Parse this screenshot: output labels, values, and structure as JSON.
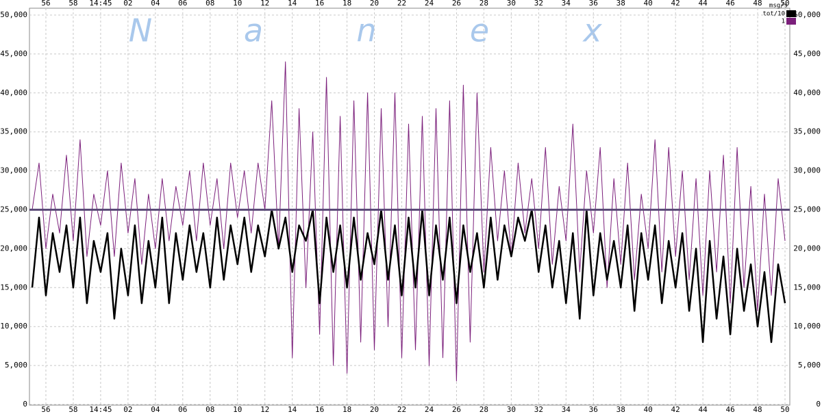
{
  "chart_data": {
    "type": "line",
    "watermark": [
      "N",
      "a",
      "n",
      "e",
      "x"
    ],
    "y_unit": "msg/s",
    "legend": "top-right",
    "grid": true,
    "xlim": [
      54.8,
      110.35
    ],
    "ylim": [
      0,
      50000
    ],
    "xticks": [
      56,
      58,
      {
        "value": 60,
        "label": "14:45"
      },
      {
        "value": 62,
        "label": "02"
      },
      {
        "value": 64,
        "label": "04"
      },
      {
        "value": 66,
        "label": "06"
      },
      {
        "value": 68,
        "label": "08"
      },
      {
        "value": 70,
        "label": "10"
      },
      {
        "value": 72,
        "label": "12"
      },
      {
        "value": 74,
        "label": "14"
      },
      {
        "value": 76,
        "label": "16"
      },
      {
        "value": 78,
        "label": "18"
      },
      {
        "value": 80,
        "label": "20"
      },
      {
        "value": 82,
        "label": "22"
      },
      {
        "value": 84,
        "label": "24"
      },
      {
        "value": 86,
        "label": "26"
      },
      {
        "value": 88,
        "label": "28"
      },
      {
        "value": 90,
        "label": "30"
      },
      {
        "value": 92,
        "label": "32"
      },
      {
        "value": 94,
        "label": "34"
      },
      {
        "value": 96,
        "label": "36"
      },
      {
        "value": 98,
        "label": "38"
      },
      {
        "value": 100,
        "label": "40"
      },
      {
        "value": 102,
        "label": "42"
      },
      {
        "value": 104,
        "label": "44"
      },
      {
        "value": 106,
        "label": "46"
      },
      {
        "value": 108,
        "label": "48"
      },
      {
        "value": 110,
        "label": "50"
      }
    ],
    "yticks": [
      0,
      {
        "value": 5000,
        "label": "5,000"
      },
      {
        "value": 10000,
        "label": "10,000"
      },
      {
        "value": 15000,
        "label": "15,000"
      },
      {
        "value": 20000,
        "label": "20,000"
      },
      {
        "value": 25000,
        "label": "25,000"
      },
      {
        "value": 30000,
        "label": "30,000"
      },
      {
        "value": 35000,
        "label": "35,000"
      },
      {
        "value": 40000,
        "label": "40,000"
      },
      {
        "value": 45000,
        "label": "45,000"
      },
      {
        "value": 50000,
        "label": "50,000"
      }
    ],
    "hline": {
      "value": 25000,
      "color": "#5b4b78"
    },
    "x": [
      55,
      55.5,
      56,
      56.5,
      57,
      57.5,
      58,
      58.5,
      59,
      59.5,
      60,
      60.5,
      61,
      61.5,
      62,
      62.5,
      63,
      63.5,
      64,
      64.5,
      65,
      65.5,
      66,
      66.5,
      67,
      67.5,
      68,
      68.5,
      69,
      69.5,
      70,
      70.5,
      71,
      71.5,
      72,
      72.5,
      73,
      73.5,
      74,
      74.5,
      75,
      75.5,
      76,
      76.5,
      77,
      77.5,
      78,
      78.5,
      79,
      79.5,
      80,
      80.5,
      81,
      81.5,
      82,
      82.5,
      83,
      83.5,
      84,
      84.5,
      85,
      85.5,
      86,
      86.5,
      87,
      87.5,
      88,
      88.5,
      89,
      89.5,
      90,
      90.5,
      91,
      91.5,
      92,
      92.5,
      93,
      93.5,
      94,
      94.5,
      95,
      95.5,
      96,
      96.5,
      97,
      97.5,
      98,
      98.5,
      99,
      99.5,
      100,
      100.5,
      101,
      101.5,
      102,
      102.5,
      103,
      103.5,
      104,
      104.5,
      105,
      105.5,
      106,
      106.5,
      107,
      107.5,
      108,
      108.5,
      109,
      109.5,
      110
    ],
    "series": [
      {
        "name": "1",
        "color": "#7b1f7b",
        "width": 1,
        "values": [
          25000,
          31000,
          20000,
          27000,
          22000,
          32000,
          21000,
          34000,
          19000,
          27000,
          23000,
          30000,
          19000,
          31000,
          22000,
          29000,
          18000,
          27000,
          20000,
          29000,
          21000,
          28000,
          23000,
          30000,
          21000,
          31000,
          23000,
          29000,
          20000,
          31000,
          24000,
          30000,
          22000,
          31000,
          25000,
          39000,
          20000,
          44000,
          6000,
          38000,
          15000,
          35000,
          9000,
          42000,
          5000,
          37000,
          4000,
          39000,
          8000,
          40000,
          7000,
          38000,
          10000,
          40000,
          6000,
          36000,
          7000,
          37000,
          5000,
          38000,
          6000,
          39000,
          3000,
          41000,
          8000,
          40000,
          17000,
          33000,
          21000,
          30000,
          19000,
          31000,
          22000,
          29000,
          20000,
          33000,
          18000,
          28000,
          21000,
          36000,
          17000,
          30000,
          22000,
          33000,
          15000,
          29000,
          18000,
          31000,
          16000,
          27000,
          20000,
          34000,
          17000,
          33000,
          19000,
          30000,
          16000,
          29000,
          14000,
          30000,
          17000,
          32000,
          13000,
          33000,
          15000,
          28000,
          12000,
          27000,
          14000,
          29000,
          21000
        ]
      },
      {
        "name": "tot/10",
        "color": "#000000",
        "width": 2.5,
        "values": [
          15000,
          24000,
          14000,
          22000,
          17000,
          23000,
          15000,
          24000,
          13000,
          21000,
          17000,
          22000,
          11000,
          20000,
          14000,
          23000,
          13000,
          21000,
          15000,
          24000,
          13000,
          22000,
          16000,
          23000,
          17000,
          22000,
          15000,
          24000,
          16000,
          23000,
          18000,
          24000,
          17000,
          23000,
          19000,
          25000,
          20000,
          24000,
          17000,
          23000,
          21000,
          25000,
          13000,
          24000,
          17000,
          23000,
          15000,
          24000,
          16000,
          22000,
          18000,
          25000,
          16000,
          23000,
          14000,
          24000,
          15000,
          25000,
          14000,
          23000,
          16000,
          24000,
          13000,
          23000,
          17000,
          22000,
          15000,
          24000,
          16000,
          23000,
          19000,
          24000,
          21000,
          25000,
          17000,
          23000,
          15000,
          21000,
          13000,
          22000,
          11000,
          25000,
          14000,
          22000,
          16000,
          21000,
          15000,
          23000,
          12000,
          22000,
          16000,
          23000,
          13000,
          21000,
          15000,
          22000,
          12000,
          20000,
          8000,
          21000,
          11000,
          19000,
          9000,
          20000,
          12000,
          18000,
          10000,
          17000,
          8000,
          18000,
          13000
        ]
      }
    ]
  }
}
